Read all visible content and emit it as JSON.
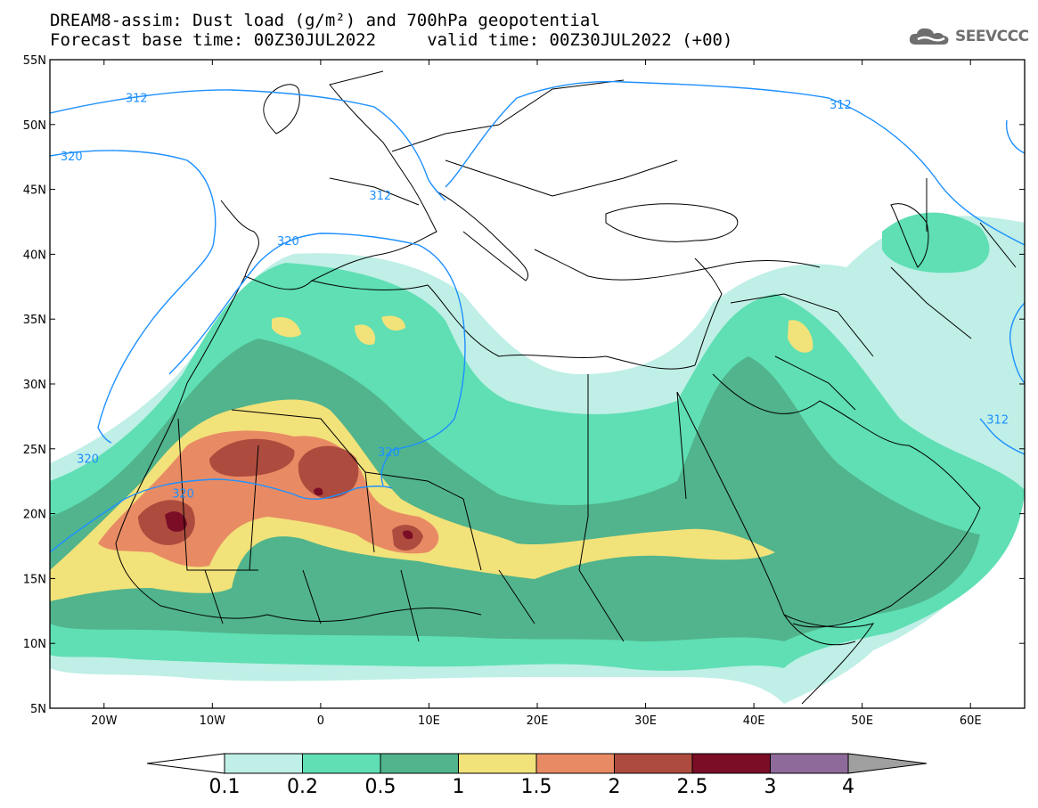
{
  "title": {
    "line1": "DREAM8-assim: Dust load (g/m²) and 700hPa geopotential",
    "line2": "Forecast base time: 00Z30JUL2022     valid time: 00Z30JUL2022 (+00)"
  },
  "logo": {
    "text": "SEEVCCC",
    "icon": "cloud-icon"
  },
  "map": {
    "lon_range": [
      -25,
      65
    ],
    "lat_range": [
      5,
      55
    ],
    "lat_ticks": [
      {
        "value": 55,
        "label": "55N"
      },
      {
        "value": 50,
        "label": "50N"
      },
      {
        "value": 45,
        "label": "45N"
      },
      {
        "value": 40,
        "label": "40N"
      },
      {
        "value": 35,
        "label": "35N"
      },
      {
        "value": 30,
        "label": "30N"
      },
      {
        "value": 25,
        "label": "25N"
      },
      {
        "value": 20,
        "label": "20N"
      },
      {
        "value": 15,
        "label": "15N"
      },
      {
        "value": 10,
        "label": "10N"
      },
      {
        "value": 5,
        "label": "5N"
      }
    ],
    "lon_ticks": [
      {
        "value": -20,
        "label": "20W"
      },
      {
        "value": -10,
        "label": "10W"
      },
      {
        "value": 0,
        "label": "0"
      },
      {
        "value": 10,
        "label": "10E"
      },
      {
        "value": 20,
        "label": "20E"
      },
      {
        "value": 30,
        "label": "30E"
      },
      {
        "value": 40,
        "label": "40E"
      },
      {
        "value": 50,
        "label": "50E"
      },
      {
        "value": 60,
        "label": "60E"
      }
    ],
    "contour_labels": [
      {
        "text": "312",
        "lon": -17,
        "lat": 51.8
      },
      {
        "text": "320",
        "lon": -23,
        "lat": 47.3
      },
      {
        "text": "312",
        "lon": 5.5,
        "lat": 44.3
      },
      {
        "text": "320",
        "lon": -3,
        "lat": 40.8
      },
      {
        "text": "312",
        "lon": 48,
        "lat": 51.3
      },
      {
        "text": "320",
        "lon": -21.5,
        "lat": 24.0
      },
      {
        "text": "320",
        "lon": -12.7,
        "lat": 21.3
      },
      {
        "text": "320",
        "lon": 6.3,
        "lat": 24.5
      },
      {
        "text": "312",
        "lon": 62.5,
        "lat": 27.0
      }
    ]
  },
  "colorbar": {
    "colors": [
      "#bfefe6",
      "#5fdfb3",
      "#51b48c",
      "#f2e27a",
      "#e88b64",
      "#ad4c3e",
      "#7b0d26",
      "#8e6a9a"
    ],
    "labels": [
      "0.1",
      "0.2",
      "0.5",
      "1",
      "1.5",
      "2",
      "2.5",
      "3",
      "4"
    ],
    "under_color": "#ffffff",
    "over_color": "#a0a0a0"
  },
  "colors": {
    "contour": "#1e90ff",
    "coast": "#000000"
  }
}
